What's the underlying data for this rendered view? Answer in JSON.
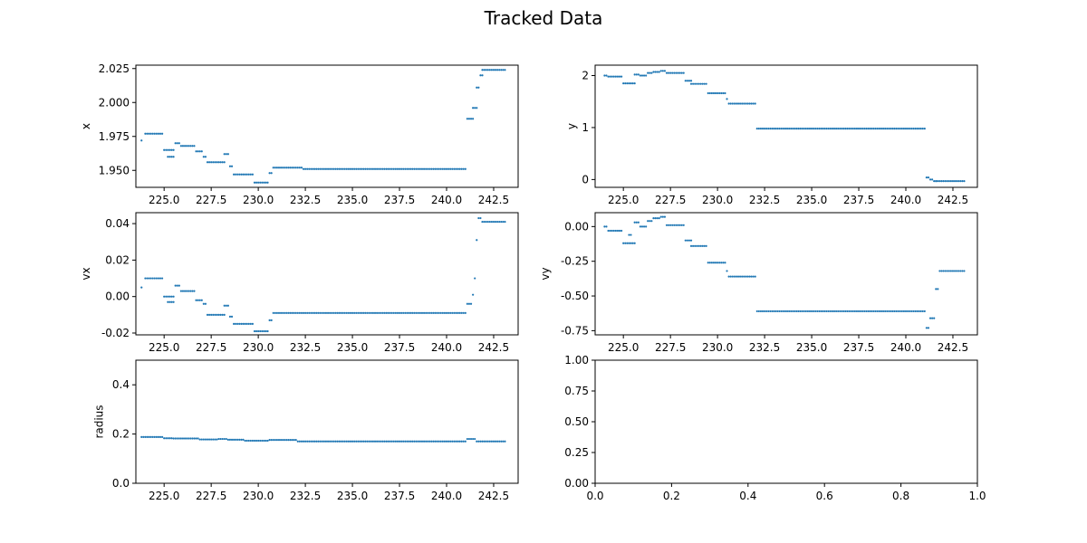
{
  "figure": {
    "title": "Tracked Data",
    "point_color": "#1f77b4"
  },
  "chart_data": [
    {
      "type": "scatter",
      "ylabel": "x",
      "xlim": [
        223.5,
        243.8
      ],
      "ylim": [
        1.9375,
        2.0275
      ],
      "xticks": [
        225.0,
        227.5,
        230.0,
        232.5,
        235.0,
        237.5,
        240.0,
        242.5
      ],
      "yticks": [
        1.95,
        1.975,
        2.0,
        2.025
      ],
      "ytick_decimals": 3,
      "segments": [
        [
          223.8,
          223.8,
          1.972
        ],
        [
          224.0,
          224.9,
          1.977
        ],
        [
          225.0,
          225.5,
          1.965
        ],
        [
          225.2,
          225.5,
          1.96
        ],
        [
          225.6,
          225.8,
          1.97
        ],
        [
          225.9,
          226.6,
          1.968
        ],
        [
          226.7,
          227.0,
          1.964
        ],
        [
          227.1,
          227.2,
          1.96
        ],
        [
          227.3,
          228.2,
          1.956
        ],
        [
          228.2,
          228.4,
          1.962
        ],
        [
          228.5,
          228.6,
          1.953
        ],
        [
          228.7,
          229.7,
          1.947
        ],
        [
          229.8,
          230.5,
          1.941
        ],
        [
          230.6,
          230.7,
          1.948
        ],
        [
          230.8,
          232.3,
          1.952
        ],
        [
          232.4,
          241.0,
          1.951
        ],
        [
          241.1,
          241.4,
          1.988
        ],
        [
          241.4,
          241.6,
          1.996
        ],
        [
          241.6,
          241.7,
          2.011
        ],
        [
          241.8,
          241.9,
          2.02
        ],
        [
          241.9,
          243.1,
          2.024
        ]
      ]
    },
    {
      "type": "scatter",
      "ylabel": "y",
      "xlim": [
        223.5,
        243.8
      ],
      "ylim": [
        -0.15,
        2.2
      ],
      "xticks": [
        225.0,
        227.5,
        230.0,
        232.5,
        235.0,
        237.5,
        240.0,
        242.5
      ],
      "yticks": [
        0,
        1,
        2
      ],
      "ytick_decimals": 0,
      "segments": [
        [
          224.0,
          224.1,
          2.0
        ],
        [
          224.2,
          224.9,
          1.98
        ],
        [
          225.0,
          225.6,
          1.85
        ],
        [
          225.6,
          225.8,
          2.02
        ],
        [
          225.9,
          226.2,
          2.0
        ],
        [
          226.3,
          226.5,
          2.05
        ],
        [
          226.6,
          226.9,
          2.07
        ],
        [
          227.0,
          227.2,
          2.09
        ],
        [
          227.3,
          228.2,
          2.05
        ],
        [
          228.3,
          228.6,
          1.9
        ],
        [
          228.6,
          229.4,
          1.84
        ],
        [
          229.5,
          230.4,
          1.66
        ],
        [
          230.5,
          230.5,
          1.55
        ],
        [
          230.6,
          232.0,
          1.46
        ],
        [
          232.1,
          241.0,
          0.98
        ],
        [
          241.1,
          241.2,
          0.04
        ],
        [
          241.3,
          241.4,
          0.0
        ],
        [
          241.5,
          241.6,
          -0.03
        ],
        [
          241.6,
          243.1,
          -0.03
        ]
      ]
    },
    {
      "type": "scatter",
      "ylabel": "vx",
      "xlim": [
        223.5,
        243.8
      ],
      "ylim": [
        -0.021,
        0.046
      ],
      "xticks": [
        225.0,
        227.5,
        230.0,
        232.5,
        235.0,
        237.5,
        240.0,
        242.5
      ],
      "yticks": [
        -0.02,
        0.0,
        0.02,
        0.04
      ],
      "ytick_decimals": 2,
      "segments": [
        [
          223.8,
          223.8,
          0.005
        ],
        [
          224.0,
          224.9,
          0.01
        ],
        [
          225.0,
          225.5,
          0.0
        ],
        [
          225.2,
          225.5,
          -0.003
        ],
        [
          225.6,
          225.8,
          0.006
        ],
        [
          225.9,
          226.6,
          0.003
        ],
        [
          226.7,
          227.0,
          -0.002
        ],
        [
          227.1,
          227.2,
          -0.004
        ],
        [
          227.3,
          228.2,
          -0.01
        ],
        [
          228.2,
          228.4,
          -0.005
        ],
        [
          228.5,
          228.6,
          -0.011
        ],
        [
          228.7,
          229.7,
          -0.015
        ],
        [
          229.8,
          230.5,
          -0.019
        ],
        [
          230.6,
          230.7,
          -0.013
        ],
        [
          230.8,
          241.0,
          -0.009
        ],
        [
          241.1,
          241.3,
          -0.004
        ],
        [
          241.4,
          241.4,
          0.001
        ],
        [
          241.5,
          241.5,
          0.01
        ],
        [
          241.6,
          241.6,
          0.031
        ],
        [
          241.7,
          241.8,
          0.043
        ],
        [
          241.9,
          243.1,
          0.041
        ]
      ]
    },
    {
      "type": "scatter",
      "ylabel": "vy",
      "xlim": [
        223.5,
        243.8
      ],
      "ylim": [
        -0.78,
        0.1
      ],
      "xticks": [
        225.0,
        227.5,
        230.0,
        232.5,
        235.0,
        237.5,
        240.0,
        242.5
      ],
      "yticks": [
        0.0,
        -0.25,
        -0.5,
        -0.75
      ],
      "ytick_decimals": 2,
      "segments": [
        [
          224.0,
          224.1,
          0.0
        ],
        [
          224.2,
          224.9,
          -0.03
        ],
        [
          225.0,
          225.6,
          -0.12
        ],
        [
          225.3,
          225.4,
          -0.06
        ],
        [
          225.6,
          225.8,
          0.03
        ],
        [
          225.9,
          226.2,
          0.0
        ],
        [
          226.3,
          226.5,
          0.04
        ],
        [
          226.6,
          226.9,
          0.06
        ],
        [
          227.0,
          227.2,
          0.07
        ],
        [
          227.3,
          228.2,
          0.01
        ],
        [
          228.3,
          228.6,
          -0.1
        ],
        [
          228.6,
          229.4,
          -0.14
        ],
        [
          229.5,
          230.4,
          -0.26
        ],
        [
          230.5,
          230.5,
          -0.32
        ],
        [
          230.6,
          232.0,
          -0.36
        ],
        [
          232.1,
          241.0,
          -0.61
        ],
        [
          241.1,
          241.2,
          -0.73
        ],
        [
          241.3,
          241.5,
          -0.66
        ],
        [
          241.6,
          241.7,
          -0.45
        ],
        [
          241.8,
          243.1,
          -0.32
        ]
      ]
    },
    {
      "type": "scatter",
      "ylabel": "radius",
      "xlim": [
        223.5,
        243.8
      ],
      "ylim": [
        0,
        0.5
      ],
      "xticks": [
        225.0,
        227.5,
        230.0,
        232.5,
        235.0,
        237.5,
        240.0,
        242.5
      ],
      "yticks": [
        0.0,
        0.2,
        0.4
      ],
      "ytick_decimals": 1,
      "segments": [
        [
          223.8,
          224.9,
          0.188
        ],
        [
          225.0,
          225.4,
          0.183
        ],
        [
          225.5,
          226.8,
          0.182
        ],
        [
          226.9,
          227.8,
          0.178
        ],
        [
          227.9,
          228.3,
          0.18
        ],
        [
          228.4,
          229.2,
          0.177
        ],
        [
          229.3,
          230.5,
          0.173
        ],
        [
          230.6,
          232.0,
          0.176
        ],
        [
          232.1,
          241.0,
          0.17
        ],
        [
          241.1,
          241.5,
          0.18
        ],
        [
          241.6,
          243.1,
          0.17
        ]
      ]
    },
    {
      "type": "scatter",
      "ylabel": "",
      "xlim": [
        0,
        1
      ],
      "ylim": [
        0,
        1
      ],
      "xticks": [
        0.0,
        0.2,
        0.4,
        0.6,
        0.8,
        1.0
      ],
      "yticks": [
        0.0,
        0.25,
        0.5,
        0.75,
        1.0
      ],
      "xtick_decimals": 1,
      "ytick_decimals": 2,
      "segments": []
    }
  ]
}
